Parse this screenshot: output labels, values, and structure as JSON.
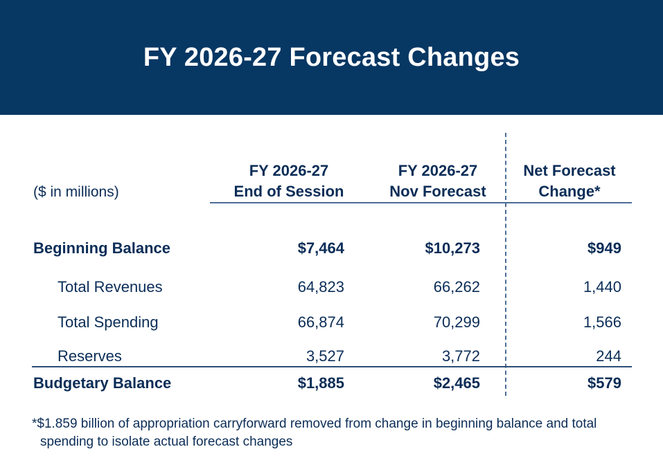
{
  "title": "FY 2026-27 Forecast Changes",
  "units_label": "($ in millions)",
  "columns": [
    {
      "line1": "FY 2026-27",
      "line2": "End of Session"
    },
    {
      "line1": "FY 2026-27",
      "line2": "Nov Forecast"
    },
    {
      "line1": "Net Forecast",
      "line2": "Change*"
    }
  ],
  "rows": [
    {
      "label": "Beginning Balance",
      "values": [
        "$7,464",
        "$10,273",
        "$949"
      ]
    },
    {
      "label": "Total Revenues",
      "values": [
        "64,823",
        "66,262",
        "1,440"
      ]
    },
    {
      "label": "Total Spending",
      "values": [
        "66,874",
        "70,299",
        "1,566"
      ]
    },
    {
      "label": "Reserves",
      "values": [
        "3,527",
        "3,772",
        "244"
      ]
    },
    {
      "label": "Budgetary Balance",
      "values": [
        "$1,885",
        "$2,465",
        "$579"
      ]
    }
  ],
  "footnote": {
    "line1": "*$1.859 billion of appropriation carryforward removed from change in beginning balance and total",
    "line2": "spending to isolate actual forecast changes"
  },
  "colors": {
    "banner": "#073763",
    "text": "#0b2d57"
  }
}
